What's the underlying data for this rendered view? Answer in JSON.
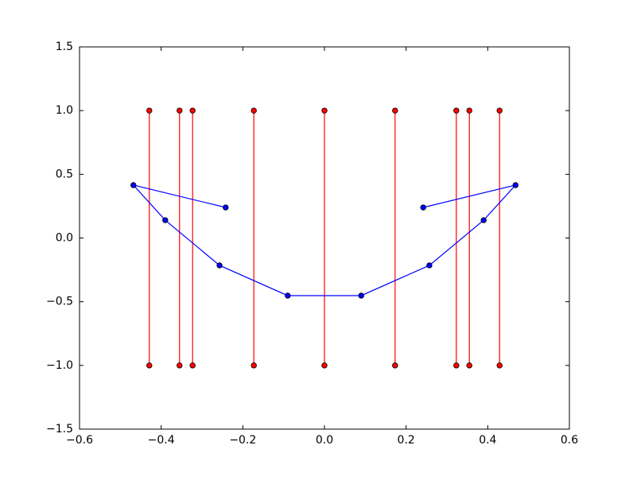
{
  "chart_data": {
    "type": "line",
    "xlim": [
      -0.6,
      0.6
    ],
    "ylim": [
      -1.5,
      1.5
    ],
    "xticks": [
      {
        "value": -0.6,
        "label": "−0.6"
      },
      {
        "value": -0.4,
        "label": "−0.4"
      },
      {
        "value": -0.2,
        "label": "−0.2"
      },
      {
        "value": 0,
        "label": "0.0"
      },
      {
        "value": 0.2,
        "label": "0.2"
      },
      {
        "value": 0.4,
        "label": "0.4"
      },
      {
        "value": 0.6,
        "label": "0.6"
      }
    ],
    "yticks": [
      {
        "value": -1.5,
        "label": "−1.5"
      },
      {
        "value": -1,
        "label": "−1.0"
      },
      {
        "value": -0.5,
        "label": "−0.5"
      },
      {
        "value": 0,
        "label": "0.0"
      },
      0.5,
      {
        "value": 1,
        "label": "1.0"
      },
      1.5
    ],
    "series": [
      {
        "color": "#ff0000",
        "x": [
          -0.429,
          -0.429
        ],
        "values": [
          1,
          -1
        ]
      },
      {
        "color": "#ff0000",
        "x": [
          -0.355,
          -0.355
        ],
        "values": [
          1,
          -1
        ]
      },
      {
        "color": "#ff0000",
        "x": [
          -0.323,
          -0.323
        ],
        "values": [
          1,
          -1
        ]
      },
      {
        "color": "#ff0000",
        "x": [
          -0.173,
          -0.173
        ],
        "values": [
          1,
          -1
        ]
      },
      {
        "color": "#ff0000",
        "x": [
          0,
          0
        ],
        "values": [
          1,
          -1
        ]
      },
      {
        "color": "#ff0000",
        "x": [
          0.173,
          0.173
        ],
        "values": [
          1,
          -1
        ]
      },
      {
        "color": "#ff0000",
        "x": [
          0.323,
          0.323
        ],
        "values": [
          1,
          -1
        ]
      },
      {
        "color": "#ff0000",
        "x": [
          0.355,
          0.355
        ],
        "values": [
          1,
          -1
        ]
      },
      {
        "color": "#ff0000",
        "x": [
          0.429,
          0.429
        ],
        "values": [
          1,
          -1
        ]
      },
      {
        "color": "#0000ff",
        "x": [
          -0.242,
          -0.468,
          -0.39,
          -0.257,
          -0.09,
          0.09,
          0.257,
          0.39,
          0.468,
          0.242
        ],
        "values": [
          0.24,
          0.415,
          0.14,
          -0.215,
          -0.452,
          -0.452,
          -0.215,
          0.14,
          0.415,
          0.24
        ]
      }
    ]
  }
}
